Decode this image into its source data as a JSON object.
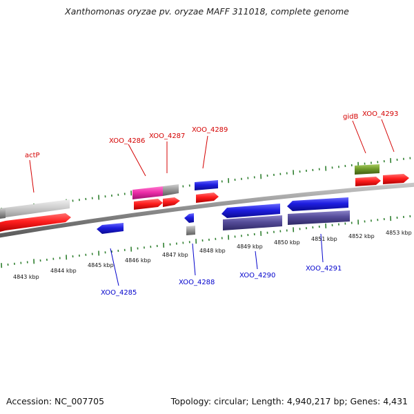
{
  "title": "Xanthomonas oryzae pv. oryzae MAFF 311018, complete genome",
  "footer": {
    "accession": "Accession: NC_007705",
    "topology": "Topology: circular; Length: 4,940,217 bp; Genes: 4,431"
  },
  "colors": {
    "background": "#ffffff",
    "backbone": "#8a8a8a",
    "tick_green": "#2f7f2f",
    "forward_label": "#d40000",
    "reverse_label": "#0000cc",
    "cds_forward": "#ff2a2a",
    "cds_reverse": "#2323dd",
    "cds_reverse_dark": "#554c99",
    "gene_magenta": "#ee2faa",
    "gene_olive": "#6f9a2a",
    "gene_gray": "#9a9a9a",
    "gene_lightgray": "#cfcfcf"
  },
  "scale": {
    "unit": "kbp",
    "labels": [
      "4843 kbp",
      "4844 kbp",
      "4845 kbp",
      "4846 kbp",
      "4847 kbp",
      "4848 kbp",
      "4849 kbp",
      "4850 kbp",
      "4851 kbp",
      "4852 kbp",
      "4853 kbp"
    ]
  },
  "genes": [
    {
      "id": "gene-actP",
      "label": "actP",
      "strand": "forward"
    },
    {
      "id": "gene-xoo-4285",
      "label": "XOO_4285",
      "strand": "reverse"
    },
    {
      "id": "gene-xoo-4286",
      "label": "XOO_4286",
      "strand": "forward"
    },
    {
      "id": "gene-xoo-4287",
      "label": "XOO_4287",
      "strand": "forward"
    },
    {
      "id": "gene-xoo-4288",
      "label": "XOO_4288",
      "strand": "reverse"
    },
    {
      "id": "gene-xoo-4289",
      "label": "XOO_4289",
      "strand": "forward"
    },
    {
      "id": "gene-xoo-4290",
      "label": "XOO_4290",
      "strand": "reverse"
    },
    {
      "id": "gene-xoo-4291",
      "label": "XOO_4291",
      "strand": "reverse"
    },
    {
      "id": "gene-gidb",
      "label": "gidB",
      "strand": "forward"
    },
    {
      "id": "gene-xoo-4293",
      "label": "XOO_4293",
      "strand": "forward"
    }
  ]
}
